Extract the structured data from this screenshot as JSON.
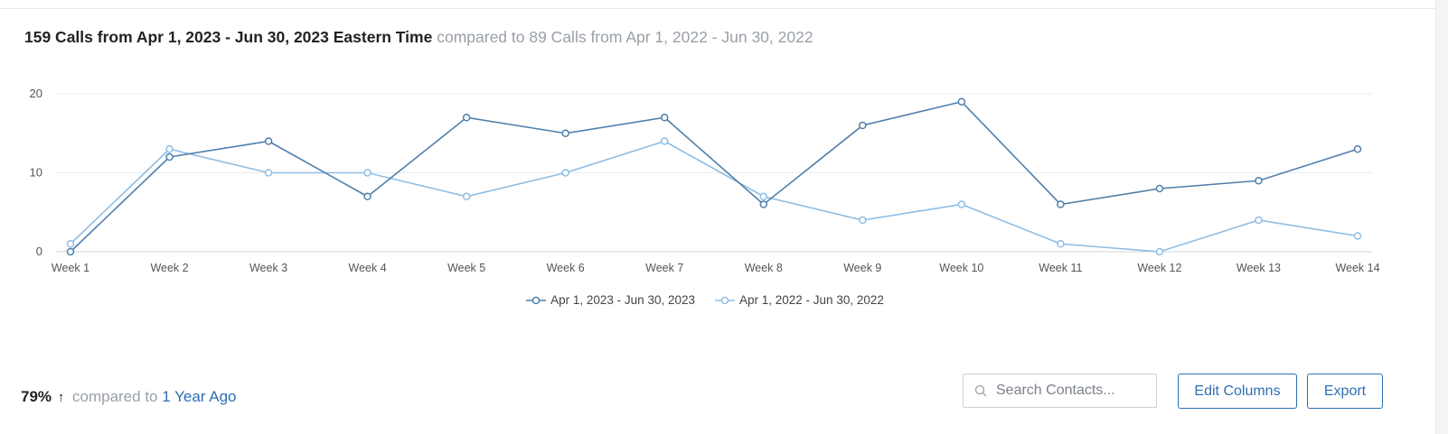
{
  "summary": {
    "primary": "159 Calls from Apr 1, 2023 - Jun 30, 2023 Eastern Time",
    "comparison": "compared to 89 Calls from Apr 1, 2022 - Jun 30, 2022"
  },
  "chart_data": {
    "type": "line",
    "title": "",
    "xlabel": "",
    "ylabel": "",
    "ylim": [
      0,
      20
    ],
    "yticks": [
      "0",
      "10",
      "20"
    ],
    "grid": true,
    "legend_position": "bottom-center",
    "categories": [
      "Week 1",
      "Week 2",
      "Week 3",
      "Week 4",
      "Week 5",
      "Week 6",
      "Week 7",
      "Week 8",
      "Week 9",
      "Week 10",
      "Week 11",
      "Week 12",
      "Week 13",
      "Week 14"
    ],
    "series": [
      {
        "name": "Apr 1, 2023 - Jun 30, 2023",
        "color": "#4f7fab",
        "values": [
          0,
          12,
          14,
          7,
          17,
          15,
          17,
          6,
          16,
          19,
          6,
          8,
          9,
          13
        ]
      },
      {
        "name": "Apr 1, 2022 - Jun 30, 2022",
        "color": "#8fbde3",
        "values": [
          1,
          13,
          10,
          10,
          7,
          10,
          14,
          7,
          4,
          6,
          1,
          0,
          4,
          2
        ]
      }
    ]
  },
  "footer": {
    "percent": "79%",
    "arrow": "↑",
    "compared_to": "compared to",
    "period_link": "1 Year Ago",
    "search_placeholder": "Search Contacts...",
    "edit_columns": "Edit Columns",
    "export": "Export"
  }
}
